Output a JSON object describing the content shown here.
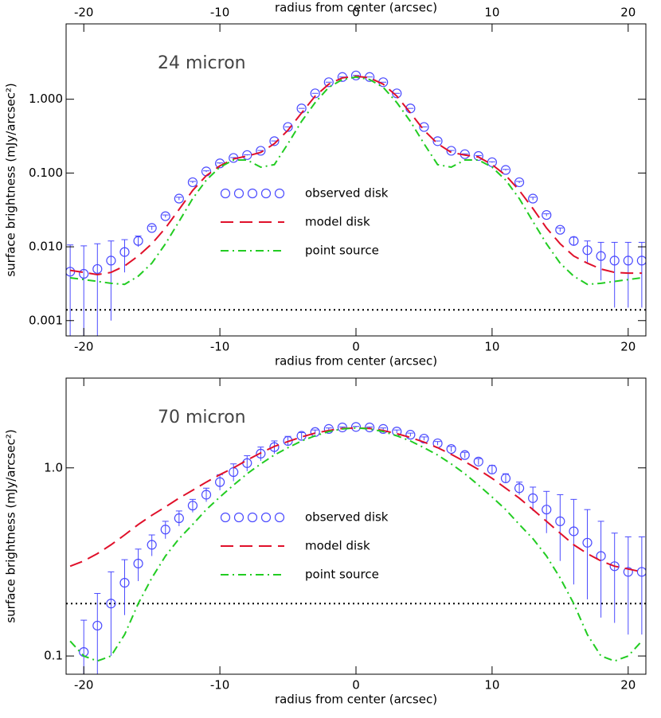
{
  "chart_data": [
    {
      "type": "line",
      "annotation": "24 micron",
      "xlabel": "radius from center (arcsec)",
      "ylabel": "surface brightness (mJy/arcsec²)",
      "top_axis": true,
      "log_y": true,
      "xlim": [
        -21.3,
        21.3
      ],
      "xticks": [
        -20,
        -10,
        0,
        10,
        20
      ],
      "ylim": [
        0.00062,
        10.5
      ],
      "yticks": [
        0.001,
        {
          "value": 0.01,
          "label": "0.010"
        },
        {
          "value": 0.1,
          "label": "0.100"
        },
        {
          "value": 1,
          "label": "1.000"
        }
      ],
      "reference_line": 0.0014,
      "x": [
        -21,
        -20,
        -19,
        -18,
        -17,
        -16,
        -15,
        -14,
        -13,
        -12,
        -11,
        -10,
        -9,
        -8,
        -7,
        -6,
        -5,
        -4,
        -3,
        -2,
        -1,
        0,
        1,
        2,
        3,
        4,
        5,
        6,
        7,
        8,
        9,
        10,
        11,
        12,
        13,
        14,
        15,
        16,
        17,
        18,
        19,
        20,
        21
      ],
      "series": [
        {
          "name": "observed disk",
          "color": "#4a4aff",
          "style": "circle",
          "values": [
            0.0046,
            0.0043,
            0.005,
            0.0065,
            0.0085,
            0.012,
            0.018,
            0.026,
            0.045,
            0.075,
            0.105,
            0.135,
            0.16,
            0.175,
            0.2,
            0.27,
            0.42,
            0.75,
            1.2,
            1.7,
            2.0,
            2.1,
            2.0,
            1.7,
            1.2,
            0.75,
            0.42,
            0.27,
            0.2,
            0.18,
            0.17,
            0.14,
            0.11,
            0.075,
            0.045,
            0.027,
            0.017,
            0.012,
            0.009,
            0.0075,
            0.0065,
            0.0065,
            0.0065
          ],
          "errors": [
            0.006,
            0.006,
            0.006,
            0.0055,
            0.004,
            0.002,
            0.001,
            0.001,
            0.002,
            0.002,
            0.002,
            0.002,
            0.002,
            0.002,
            0.002,
            0.002,
            0.002,
            0.002,
            0.002,
            0.002,
            0.002,
            0.002,
            0.002,
            0.002,
            0.002,
            0.002,
            0.002,
            0.002,
            0.002,
            0.002,
            0.002,
            0.002,
            0.002,
            0.002,
            0.002,
            0.001,
            0.001,
            0.0015,
            0.003,
            0.004,
            0.005,
            0.005,
            0.005
          ]
        },
        {
          "name": "model disk",
          "color": "#e0102a",
          "style": "dash",
          "values": [
            0.0048,
            0.0045,
            0.0042,
            0.0045,
            0.0055,
            0.0075,
            0.011,
            0.018,
            0.032,
            0.058,
            0.092,
            0.125,
            0.155,
            0.17,
            0.19,
            0.25,
            0.38,
            0.65,
            1.1,
            1.6,
            1.95,
            2.05,
            1.95,
            1.6,
            1.1,
            0.65,
            0.38,
            0.25,
            0.19,
            0.175,
            0.165,
            0.13,
            0.093,
            0.058,
            0.033,
            0.018,
            0.011,
            0.0075,
            0.006,
            0.005,
            0.0045,
            0.0044,
            0.0044
          ]
        },
        {
          "name": "point source",
          "color": "#22cc22",
          "style": "dashdot",
          "values": [
            0.0038,
            0.0036,
            0.0034,
            0.0032,
            0.0031,
            0.004,
            0.006,
            0.011,
            0.022,
            0.045,
            0.08,
            0.12,
            0.15,
            0.15,
            0.12,
            0.13,
            0.25,
            0.5,
            0.9,
            1.45,
            1.85,
            2.0,
            1.85,
            1.45,
            0.9,
            0.5,
            0.25,
            0.13,
            0.12,
            0.15,
            0.15,
            0.12,
            0.08,
            0.045,
            0.022,
            0.011,
            0.006,
            0.004,
            0.0031,
            0.0032,
            0.0034,
            0.0036,
            0.0038
          ]
        }
      ]
    },
    {
      "type": "line",
      "annotation": "70 micron",
      "xlabel": "radius from center (arcsec)",
      "ylabel": "surface brightness (mJy/arcsec²)",
      "top_axis": false,
      "log_y": true,
      "xlim": [
        -21.3,
        21.3
      ],
      "xticks": [
        -20,
        -10,
        0,
        10,
        20
      ],
      "ylim": [
        0.08,
        3.0
      ],
      "yticks": [
        0.1,
        {
          "value": 1,
          "label": "1.0"
        }
      ],
      "reference_line": 0.19,
      "x": [
        -21,
        -20,
        -19,
        -18,
        -17,
        -16,
        -15,
        -14,
        -13,
        -12,
        -11,
        -10,
        -9,
        -8,
        -7,
        -6,
        -5,
        -4,
        -3,
        -2,
        -1,
        0,
        1,
        2,
        3,
        4,
        5,
        6,
        7,
        8,
        9,
        10,
        11,
        12,
        13,
        14,
        15,
        16,
        17,
        18,
        19,
        20,
        21
      ],
      "series": [
        {
          "name": "observed disk",
          "color": "#4a4aff",
          "style": "circle",
          "values": [
            null,
            0.105,
            0.145,
            0.19,
            0.245,
            0.31,
            0.39,
            0.47,
            0.54,
            0.63,
            0.72,
            0.84,
            0.95,
            1.06,
            1.19,
            1.29,
            1.39,
            1.48,
            1.55,
            1.61,
            1.64,
            1.65,
            1.64,
            1.61,
            1.56,
            1.5,
            1.43,
            1.35,
            1.26,
            1.17,
            1.08,
            0.98,
            0.88,
            0.78,
            0.69,
            0.6,
            0.52,
            0.46,
            0.4,
            0.34,
            0.3,
            0.28,
            0.28
          ],
          "errors": [
            null,
            0.05,
            0.07,
            0.09,
            0.08,
            0.06,
            0.05,
            0.05,
            0.05,
            0.05,
            0.06,
            0.08,
            0.1,
            0.1,
            0.1,
            0.1,
            0.08,
            0.06,
            0.04,
            0.02,
            0.01,
            0.01,
            0.01,
            0.02,
            0.03,
            0.03,
            0.03,
            0.03,
            0.04,
            0.04,
            0.04,
            0.05,
            0.05,
            0.06,
            0.1,
            0.15,
            0.2,
            0.22,
            0.2,
            0.18,
            0.15,
            0.15,
            0.15
          ]
        },
        {
          "name": "model disk",
          "color": "#e0102a",
          "style": "dash",
          "values": [
            0.3,
            0.32,
            0.35,
            0.39,
            0.44,
            0.5,
            0.56,
            0.62,
            0.69,
            0.76,
            0.84,
            0.92,
            1.0,
            1.1,
            1.2,
            1.3,
            1.38,
            1.46,
            1.53,
            1.58,
            1.62,
            1.63,
            1.62,
            1.58,
            1.52,
            1.45,
            1.37,
            1.28,
            1.18,
            1.08,
            0.98,
            0.88,
            0.78,
            0.69,
            0.6,
            0.52,
            0.45,
            0.39,
            0.35,
            0.32,
            0.3,
            0.29,
            0.28
          ]
        },
        {
          "name": "point source",
          "color": "#22cc22",
          "style": "dashdot",
          "values": [
            0.12,
            0.1,
            0.094,
            0.1,
            0.13,
            0.19,
            0.26,
            0.34,
            0.42,
            0.5,
            0.6,
            0.7,
            0.81,
            0.93,
            1.05,
            1.17,
            1.28,
            1.39,
            1.48,
            1.56,
            1.61,
            1.63,
            1.61,
            1.56,
            1.48,
            1.39,
            1.28,
            1.17,
            1.05,
            0.93,
            0.81,
            0.7,
            0.6,
            0.5,
            0.42,
            0.34,
            0.26,
            0.19,
            0.13,
            0.1,
            0.094,
            0.1,
            0.12
          ]
        }
      ]
    }
  ]
}
